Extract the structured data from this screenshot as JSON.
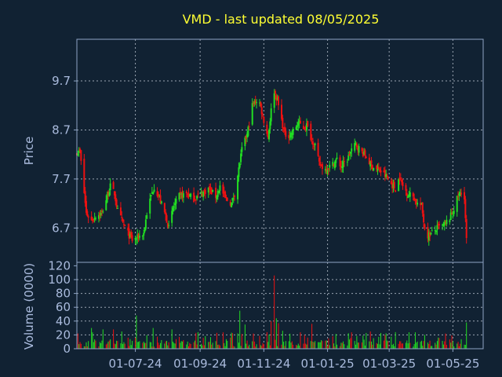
{
  "chart_data": [
    {
      "type": "candlestick",
      "title": "VMD - last updated 08/05/2025",
      "ylabel": "Price",
      "ylim": [
        6.0,
        10.55
      ],
      "yticks": [
        6.7,
        7.7,
        8.7,
        9.7
      ],
      "ytick_labels": [
        "6.7",
        "7.7",
        "8.7",
        "9.7"
      ],
      "grid": true,
      "x_range": [
        "2024-05-06",
        "2025-05-30"
      ],
      "xticks": [
        "2024-07-01",
        "2024-09-01",
        "2024-11-01",
        "2025-01-01",
        "2025-03-01",
        "2025-05-01"
      ],
      "up_color": "#22dd22",
      "down_color": "#ee1111",
      "anchors": [
        [
          "2024-05-06",
          8.25
        ],
        [
          "2024-05-09",
          8.25
        ],
        [
          "2024-05-15",
          7.0
        ],
        [
          "2024-05-20",
          6.85
        ],
        [
          "2024-05-24",
          6.95
        ],
        [
          "2024-05-30",
          7.0
        ],
        [
          "2024-06-04",
          7.35
        ],
        [
          "2024-06-07",
          7.55
        ],
        [
          "2024-06-11",
          7.4
        ],
        [
          "2024-06-14",
          7.05
        ],
        [
          "2024-06-19",
          6.8
        ],
        [
          "2024-06-25",
          6.55
        ],
        [
          "2024-06-28",
          6.45
        ],
        [
          "2024-07-03",
          6.5
        ],
        [
          "2024-07-09",
          6.6
        ],
        [
          "2024-07-12",
          7.0
        ],
        [
          "2024-07-16",
          7.35
        ],
        [
          "2024-07-19",
          7.55
        ],
        [
          "2024-07-24",
          7.3
        ],
        [
          "2024-07-30",
          6.95
        ],
        [
          "2024-08-02",
          6.7
        ],
        [
          "2024-08-06",
          7.1
        ],
        [
          "2024-08-12",
          7.35
        ],
        [
          "2024-08-19",
          7.4
        ],
        [
          "2024-08-26",
          7.3
        ],
        [
          "2024-09-02",
          7.4
        ],
        [
          "2024-09-09",
          7.5
        ],
        [
          "2024-09-16",
          7.35
        ],
        [
          "2024-09-20",
          7.55
        ],
        [
          "2024-09-25",
          7.3
        ],
        [
          "2024-10-01",
          7.2
        ],
        [
          "2024-10-04",
          7.4
        ],
        [
          "2024-10-08",
          7.9
        ],
        [
          "2024-10-11",
          8.3
        ],
        [
          "2024-10-16",
          8.6
        ],
        [
          "2024-10-21",
          9.2
        ],
        [
          "2024-10-25",
          9.3
        ],
        [
          "2024-10-28",
          9.25
        ],
        [
          "2024-11-01",
          8.9
        ],
        [
          "2024-11-05",
          8.55
        ],
        [
          "2024-11-08",
          9.1
        ],
        [
          "2024-11-11",
          9.5
        ],
        [
          "2024-11-14",
          9.3
        ],
        [
          "2024-11-18",
          8.9
        ],
        [
          "2024-11-21",
          8.6
        ],
        [
          "2024-11-26",
          8.6
        ],
        [
          "2024-11-30",
          8.7
        ],
        [
          "2024-12-04",
          8.85
        ],
        [
          "2024-12-09",
          8.75
        ],
        [
          "2024-12-12",
          8.8
        ],
        [
          "2024-12-17",
          8.5
        ],
        [
          "2024-12-20",
          8.4
        ],
        [
          "2024-12-24",
          8.0
        ],
        [
          "2024-12-30",
          7.9
        ],
        [
          "2025-01-06",
          8.0
        ],
        [
          "2025-01-10",
          8.1
        ],
        [
          "2025-01-14",
          7.95
        ],
        [
          "2025-01-20",
          8.1
        ],
        [
          "2025-01-24",
          8.3
        ],
        [
          "2025-01-28",
          8.4
        ],
        [
          "2025-02-03",
          8.25
        ],
        [
          "2025-02-07",
          8.15
        ],
        [
          "2025-02-11",
          8.0
        ],
        [
          "2025-02-17",
          7.9
        ],
        [
          "2025-02-21",
          7.85
        ],
        [
          "2025-02-26",
          7.75
        ],
        [
          "2025-03-03",
          7.6
        ],
        [
          "2025-03-07",
          7.5
        ],
        [
          "2025-03-11",
          7.75
        ],
        [
          "2025-03-14",
          7.55
        ],
        [
          "2025-03-19",
          7.4
        ],
        [
          "2025-03-24",
          7.35
        ],
        [
          "2025-03-28",
          7.2
        ],
        [
          "2025-04-01",
          7.15
        ],
        [
          "2025-04-04",
          6.7
        ],
        [
          "2025-04-07",
          6.55
        ],
        [
          "2025-04-11",
          6.6
        ],
        [
          "2025-04-16",
          6.7
        ],
        [
          "2025-04-22",
          6.75
        ],
        [
          "2025-04-28",
          6.9
        ],
        [
          "2025-05-02",
          7.1
        ],
        [
          "2025-05-06",
          7.35
        ],
        [
          "2025-05-08",
          7.4
        ],
        [
          "2025-05-12",
          7.35
        ],
        [
          "2025-05-14",
          6.45
        ]
      ]
    },
    {
      "type": "bar",
      "ylabel": "Volume (0000)",
      "ylim": [
        0,
        125
      ],
      "yticks": [
        0,
        20,
        40,
        60,
        80,
        100,
        120
      ],
      "ytick_labels": [
        "0",
        "20",
        "40",
        "60",
        "80",
        "100",
        "120"
      ],
      "grid": true,
      "xtick_labels": [
        "01-07-24",
        "01-09-24",
        "01-11-24",
        "01-01-25",
        "01-03-25",
        "01-05-25"
      ],
      "spikes": [
        [
          "2024-05-20",
          30
        ],
        [
          "2024-05-31",
          28
        ],
        [
          "2024-06-10",
          28
        ],
        [
          "2024-06-18",
          25
        ],
        [
          "2024-07-02",
          48
        ],
        [
          "2024-07-18",
          30
        ],
        [
          "2024-08-05",
          28
        ],
        [
          "2024-09-17",
          23
        ],
        [
          "2024-10-09",
          55
        ],
        [
          "2024-10-14",
          35
        ],
        [
          "2024-10-22",
          22
        ],
        [
          "2024-11-04",
          24
        ],
        [
          "2024-11-08",
          40
        ],
        [
          "2024-11-11",
          106
        ],
        [
          "2024-11-13",
          44
        ],
        [
          "2024-11-15",
          37
        ],
        [
          "2024-11-19",
          26
        ],
        [
          "2024-12-10",
          20
        ],
        [
          "2024-12-17",
          36
        ],
        [
          "2025-01-06",
          18
        ],
        [
          "2025-02-11",
          25
        ],
        [
          "2025-03-07",
          24
        ],
        [
          "2025-04-04",
          20
        ],
        [
          "2025-04-24",
          22
        ],
        [
          "2025-05-14",
          38
        ]
      ]
    }
  ]
}
